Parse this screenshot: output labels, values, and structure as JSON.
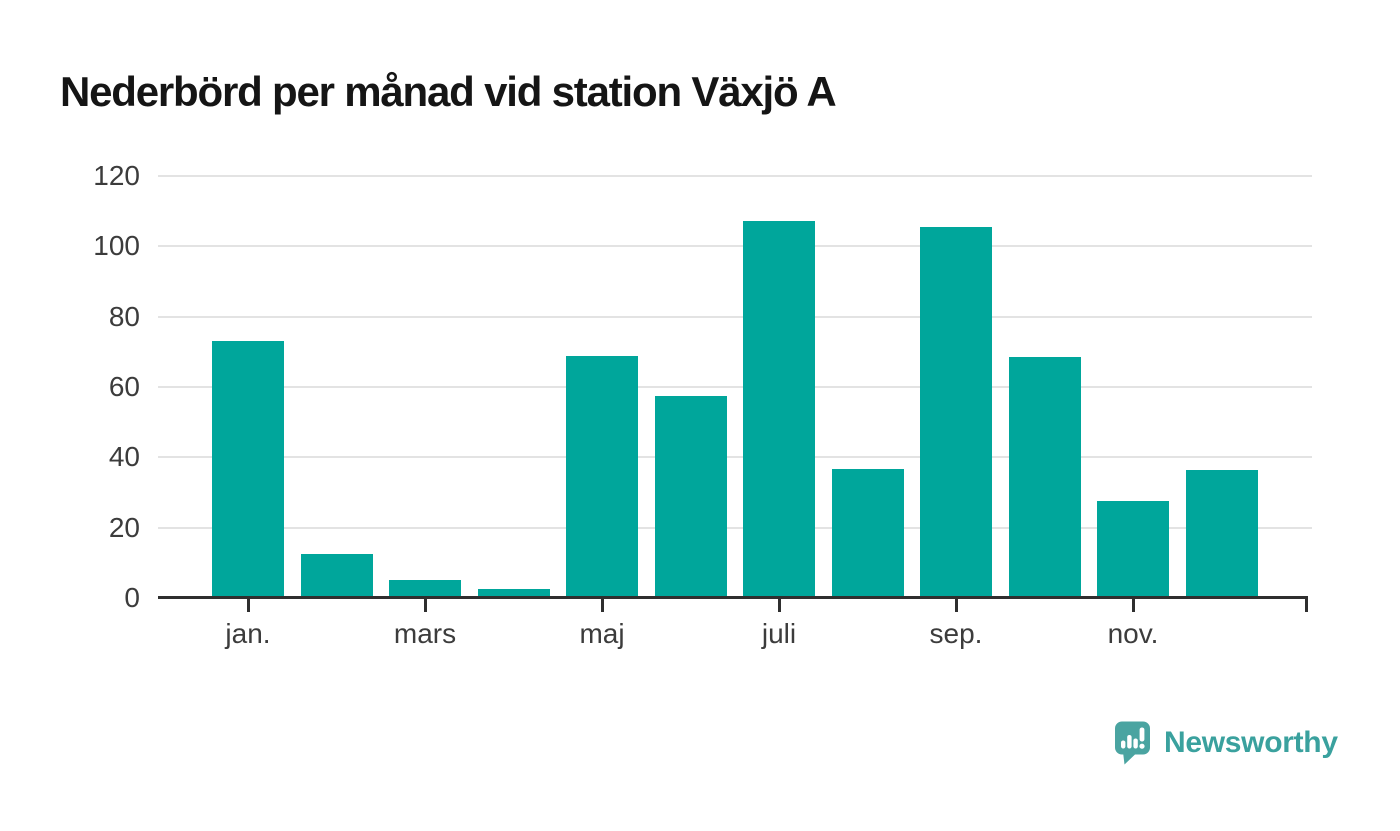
{
  "title": "Nederbörd per månad vid station Växjö A",
  "chart_data": {
    "type": "bar",
    "title": "Nederbörd per månad vid station Växjö A",
    "values": [
      73.1,
      12.4,
      5.0,
      2.5,
      68.8,
      57.4,
      107.3,
      36.7,
      105.5,
      68.5,
      27.6,
      36.4
    ],
    "x_tick_labels": [
      "jan.",
      "mars",
      "maj",
      "juli",
      "sep.",
      "nov."
    ],
    "x_tick_indices": [
      0,
      2,
      4,
      6,
      8,
      10
    ],
    "yticks": [
      0,
      20,
      40,
      60,
      80,
      100,
      120
    ],
    "ylim": [
      0,
      120
    ],
    "grid": "horizontal",
    "legend": "none"
  },
  "branding": {
    "name": "Newsworthy",
    "logo_icon": "speech-bubble-with-bar-chart-and-exclamation"
  },
  "colors": {
    "bar": "#00a69b",
    "grid": "#e3e3e3",
    "axis": "#2f2f2f",
    "tick_label": "#3c3c3c",
    "title": "#151515",
    "logo_mark": "#4aa4a1",
    "logo_text": "#3aa19e"
  }
}
